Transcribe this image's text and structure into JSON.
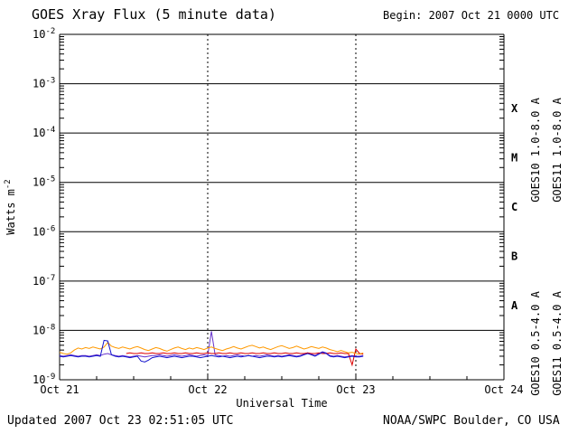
{
  "header": {
    "title": "GOES Xray Flux (5 minute data)",
    "begin": "Begin: 2007 Oct 21 0000 UTC"
  },
  "footer": {
    "updated": "Updated 2007 Oct 23 02:51:05 UTC",
    "source": "NOAA/SWPC Boulder, CO USA"
  },
  "chart_data": {
    "type": "line",
    "title": "GOES Xray Flux (5 minute data)",
    "xlabel": "Universal Time",
    "ylabel": {
      "base": "Watts m",
      "exponent": "-2"
    },
    "x_axis": {
      "range_days": [
        0,
        3
      ],
      "tick_labels": [
        "Oct 21",
        "Oct 22",
        "Oct 23",
        "Oct 24"
      ],
      "minor_tick_days": 0.25,
      "dotted_gridline_days": [
        1,
        2
      ]
    },
    "y_axis": {
      "scale": "log",
      "decade_exponents": [
        -2,
        -3,
        -4,
        -5,
        -6,
        -7,
        -8,
        -9
      ]
    },
    "flare_classes": [
      {
        "label": "X",
        "mid_exponent": -3.5
      },
      {
        "label": "M",
        "mid_exponent": -4.5
      },
      {
        "label": "C",
        "mid_exponent": -5.5
      },
      {
        "label": "B",
        "mid_exponent": -6.5
      },
      {
        "label": "A",
        "mid_exponent": -7.5
      }
    ],
    "series": [
      {
        "name": "GOES10 1.0-8.0 A",
        "color": "#6633cc",
        "x_start_day": 0,
        "x_step_day": 0.025,
        "values_1e9": [
          3.1,
          3,
          3.1,
          3.2,
          3.1,
          3,
          3.1,
          3.1,
          3,
          3.1,
          3.2,
          3.1,
          3.3,
          3.4,
          3.2,
          3.1,
          3,
          3.1,
          3,
          2.9,
          3,
          3.1,
          3,
          2.9,
          3,
          3.1,
          3.1,
          3.2,
          3.1,
          3,
          3.1,
          3.2,
          3.1,
          3,
          3.1,
          3.2,
          3.1,
          3,
          3.1,
          3.2,
          3.1,
          9.6,
          3.2,
          3.1,
          3,
          3.1,
          3,
          3.1,
          3.2,
          3.1,
          3,
          3.1,
          3,
          3.1,
          3,
          3.1,
          3.2,
          3.1,
          3,
          3.1,
          3,
          3.1,
          3.2,
          3.1,
          3,
          3.1,
          3.3,
          3.5,
          3.3,
          3.1,
          3.4,
          3.7,
          3.5,
          3.1,
          3,
          3.1,
          3,
          2.9,
          3,
          3.1,
          3,
          3,
          3.1
        ]
      },
      {
        "name": "GOES11 1.0-8.0 A",
        "color": "#dd0000",
        "x_start_day": 0.45,
        "x_step_day": 0.025,
        "values_1e9": [
          3.4,
          3.5,
          3.4,
          3.4,
          3.5,
          3.4,
          3.4,
          3.5,
          3.4,
          3.4,
          3.5,
          3.4,
          3.4,
          3.5,
          3.4,
          3.4,
          3.5,
          3.4,
          3.4,
          3.5,
          3.4,
          3.4,
          3.5,
          3.4,
          3.4,
          3.5,
          3.4,
          3.4,
          3.5,
          3.4,
          3.4,
          3.5,
          3.4,
          3.4,
          3.5,
          3.4,
          3.4,
          3.5,
          3.4,
          3.4,
          3.5,
          3.4,
          3.4,
          3.5,
          3.4,
          3.4,
          3.5,
          3.4,
          3.4,
          3.5,
          3.4,
          3.4,
          3.5,
          3.4,
          3.4,
          3.5,
          3.4,
          3.4,
          3.5,
          3.4,
          3.4,
          2,
          4.2,
          3.4,
          3.3
        ]
      },
      {
        "name": "GOES10 0.5-4.0 A",
        "color": "#ff9900",
        "x_start_day": 0,
        "x_step_day": 0.025,
        "values_1e9": [
          3.6,
          3.4,
          3.3,
          3.5,
          4,
          4.4,
          4.2,
          4.5,
          4.3,
          4.6,
          4.4,
          4.2,
          4.6,
          5.7,
          4.8,
          4.5,
          4.3,
          4.6,
          4.4,
          4.2,
          4.5,
          4.7,
          4.4,
          4.1,
          3.9,
          4.2,
          4.5,
          4.3,
          4,
          3.8,
          4.1,
          4.4,
          4.6,
          4.3,
          4.1,
          4.4,
          4.2,
          4.5,
          4.3,
          4.1,
          4.4,
          4.6,
          4.3,
          4.1,
          3.9,
          4.2,
          4.4,
          4.7,
          4.4,
          4.2,
          4.5,
          4.8,
          5,
          4.7,
          4.4,
          4.6,
          4.3,
          4.1,
          4.4,
          4.7,
          4.9,
          4.6,
          4.3,
          4.5,
          4.8,
          4.5,
          4.2,
          4.4,
          4.7,
          4.5,
          4.3,
          4.6,
          4.4,
          4.1,
          3.9,
          3.7,
          3.9,
          3.7,
          3.5,
          3.6,
          3.4,
          3.3,
          3.5
        ]
      },
      {
        "name": "GOES11 0.5-4.0 A",
        "color": "#1111cc",
        "x_start_day": 0,
        "x_step_day": 0.025,
        "values_1e9": [
          3,
          2.9,
          3,
          3.1,
          3,
          2.9,
          3,
          3,
          2.9,
          3,
          3.1,
          3,
          6.3,
          6.1,
          3.2,
          3,
          2.9,
          3,
          2.9,
          2.8,
          2.9,
          3,
          2.4,
          2.3,
          2.5,
          2.8,
          2.9,
          3,
          2.9,
          2.8,
          2.9,
          3,
          2.9,
          2.8,
          2.9,
          3,
          3,
          2.9,
          2.8,
          2.9,
          3,
          3.1,
          3,
          2.9,
          3,
          2.9,
          2.8,
          2.9,
          3,
          2.9,
          3,
          3.1,
          3,
          2.9,
          2.8,
          2.9,
          3,
          3,
          2.9,
          3,
          2.9,
          3,
          3.1,
          3,
          2.9,
          3,
          3.2,
          3.4,
          3.2,
          3,
          3.3,
          3.6,
          3.4,
          3,
          2.9,
          3,
          2.9,
          2.8,
          2.9,
          3,
          2.9,
          2.9,
          3
        ]
      }
    ],
    "legend": {
      "entries": [
        {
          "label": "GOES10 1.0-8.0 A",
          "color": "#6633cc",
          "column": 0,
          "position": "top"
        },
        {
          "label": "GOES10 0.5-4.0 A",
          "color": "#ff9900",
          "column": 0,
          "position": "bottom"
        },
        {
          "label": "GOES11 1.0-8.0 A",
          "color": "#dd0000",
          "column": 1,
          "position": "top"
        },
        {
          "label": "GOES11 0.5-4.0 A",
          "color": "#1111cc",
          "column": 1,
          "position": "bottom"
        }
      ]
    }
  }
}
